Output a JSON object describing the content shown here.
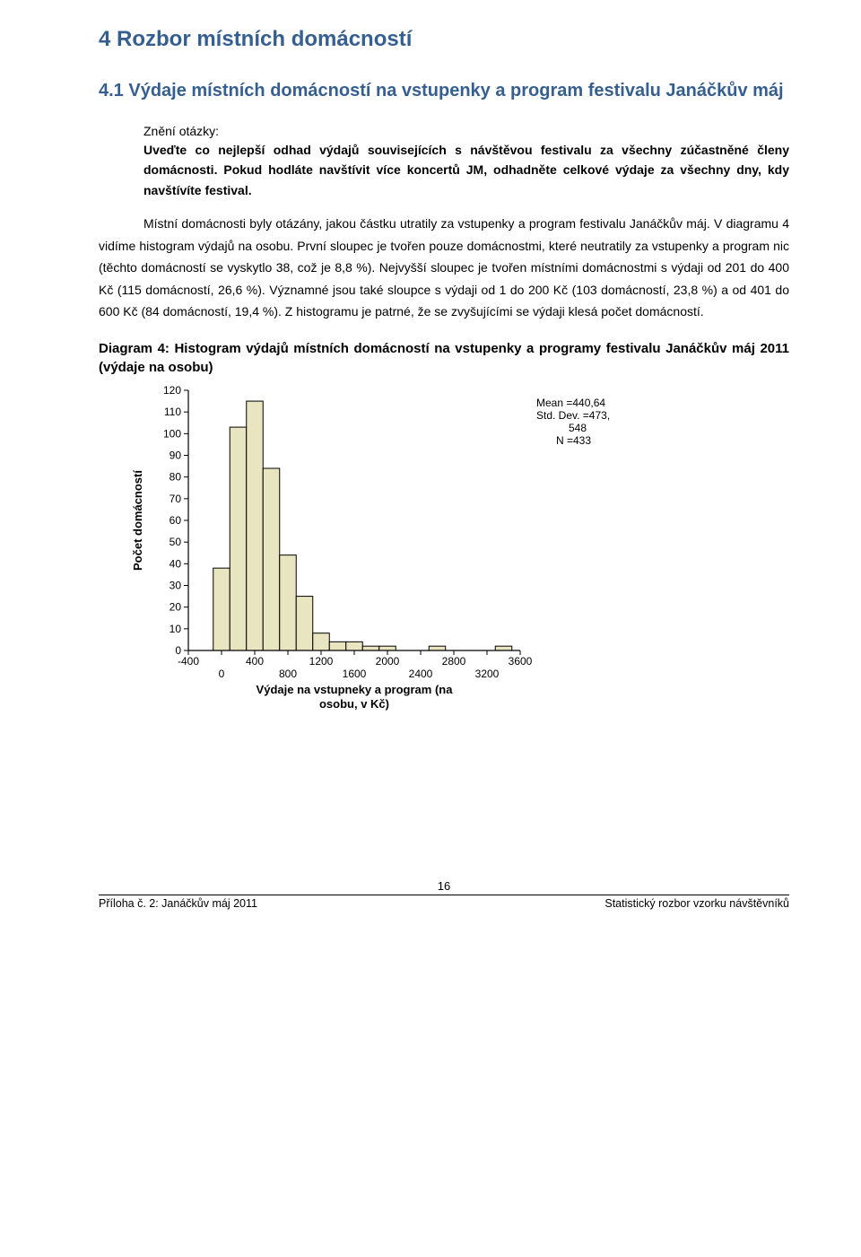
{
  "heading1": "4  Rozbor místních domácností",
  "heading2": "4.1 Výdaje místních domácností na vstupenky a program festivalu Janáčkův máj",
  "question_label": "Znění otázky:",
  "question_text": "Uveďte co nejlepší odhad výdajů souvisejících s návštěvou festivalu za všechny zúčastněné členy domácnosti. Pokud hodláte navštívit více koncertů JM, odhadněte celkové výdaje za všechny dny, kdy navštívíte festival.",
  "body": "Místní domácnosti byly otázány, jakou částku utratily za vstupenky a program festivalu Janáčkův máj. V diagramu 4 vidíme histogram výdajů na osobu. První sloupec je tvořen pouze domácnostmi, které neutratily za vstupenky a program nic (těchto domácností se vyskytlo 38, což je 8,8 %). Nejvyšší sloupec je tvořen místními domácnostmi s výdaji od 201 do 400 Kč (115 domácností, 26,6 %). Významné jsou také sloupce s výdaji od 1 do 200 Kč (103 domácností, 23,8 %) a od 401 do 600 Kč (84 domácností, 19,4 %). Z histogramu je patrné, že se zvyšujícími se  výdaji klesá počet domácností.",
  "diagram_title": "Diagram 4: Histogram výdajů místních domácností na vstupenky a programy festivalu Janáčkův máj 2011 (výdaje na osobu)",
  "histogram": {
    "type": "histogram",
    "ylabel": "Počet domácností",
    "xlabel": "Výdaje na vstupneky a program (na osobu, v Kč)",
    "ylim": [
      0,
      120
    ],
    "ytick_step": 10,
    "yticks": [
      0,
      10,
      20,
      30,
      40,
      50,
      60,
      70,
      80,
      90,
      100,
      110,
      120
    ],
    "xlim": [
      -400,
      3600
    ],
    "xticks_lower": [
      -400,
      400,
      1200,
      2000,
      2800,
      3600
    ],
    "xticks_upper": [
      0,
      800,
      1600,
      2400,
      3200
    ],
    "bars": [
      {
        "x": 0,
        "h": 38
      },
      {
        "x": 200,
        "h": 103
      },
      {
        "x": 400,
        "h": 115
      },
      {
        "x": 600,
        "h": 84
      },
      {
        "x": 800,
        "h": 44
      },
      {
        "x": 1000,
        "h": 25
      },
      {
        "x": 1200,
        "h": 8
      },
      {
        "x": 1400,
        "h": 4
      },
      {
        "x": 1600,
        "h": 4
      },
      {
        "x": 1800,
        "h": 2
      },
      {
        "x": 2000,
        "h": 2
      },
      {
        "x": 2600,
        "h": 2
      },
      {
        "x": 3400,
        "h": 2
      }
    ],
    "bar_width_units": 200,
    "bar_fill": "#e9e5c0",
    "bar_stroke": "#000000",
    "axis_color": "#000000",
    "label_fontsize": 13,
    "tick_fontsize": 12,
    "stats": {
      "mean_label": "Mean =440,64",
      "std_label": "Std. Dev. =473,",
      "std_val": "548",
      "n_label": "N =433"
    }
  },
  "page_number": "16",
  "footer_left": "Příloha č. 2: Janáčkův máj 2011",
  "footer_right": "Statistický rozbor vzorku návštěvníků"
}
